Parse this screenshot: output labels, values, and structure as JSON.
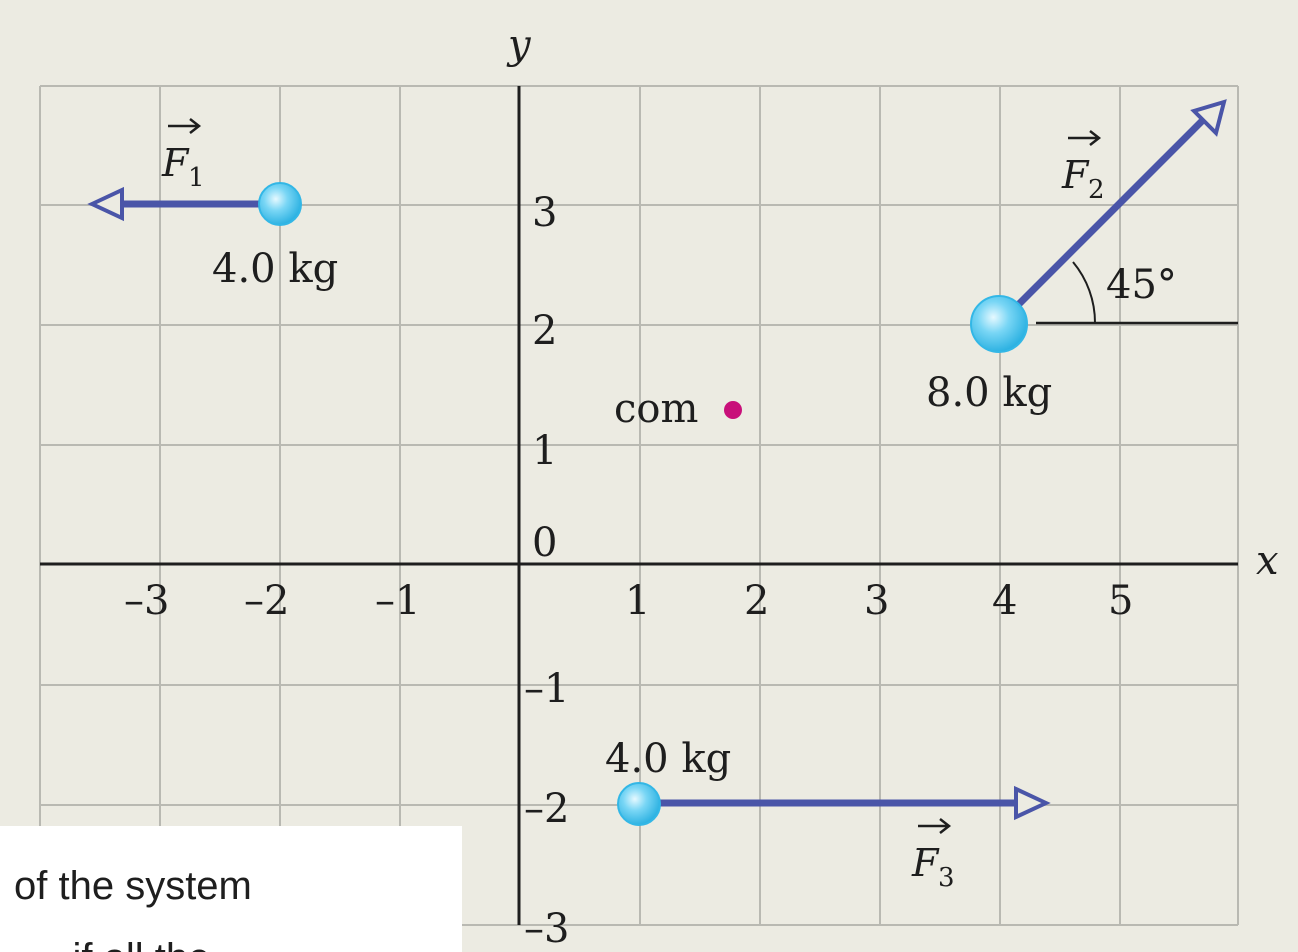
{
  "axes": {
    "x_label": "x",
    "y_label": "y",
    "x_ticks": [
      "–3",
      "–2",
      "–1",
      "1",
      "2",
      "3",
      "4",
      "5"
    ],
    "y_ticks": [
      "3",
      "2",
      "1",
      "0",
      "–1",
      "–2",
      "–3"
    ],
    "x_range": [
      -4,
      6
    ],
    "y_range": [
      -3,
      4
    ],
    "grid": true
  },
  "masses": [
    {
      "label": "4.0 kg",
      "x": -2,
      "y": 3
    },
    {
      "label": "8.0 kg",
      "x": 4,
      "y": 2
    },
    {
      "label": "4.0 kg",
      "x": 1,
      "y": -2
    }
  ],
  "forces": [
    {
      "symbol": "F",
      "subscript": "1",
      "direction_deg": 180
    },
    {
      "symbol": "F",
      "subscript": "2",
      "direction_deg": 45
    },
    {
      "symbol": "F",
      "subscript": "3",
      "direction_deg": 0
    }
  ],
  "angle_label": "45°",
  "com": {
    "label": "com",
    "x": 1.75,
    "y": 1.25
  },
  "colors": {
    "background": "#ecebe2",
    "grid": "#b9b9b2",
    "axis": "#1e1e1e",
    "force_arrow": "#4a55a8",
    "mass": "#5cc8ee",
    "com_dot": "#c8107a"
  },
  "caption": {
    "line1": "of the system",
    "line2": "... if all the..."
  }
}
